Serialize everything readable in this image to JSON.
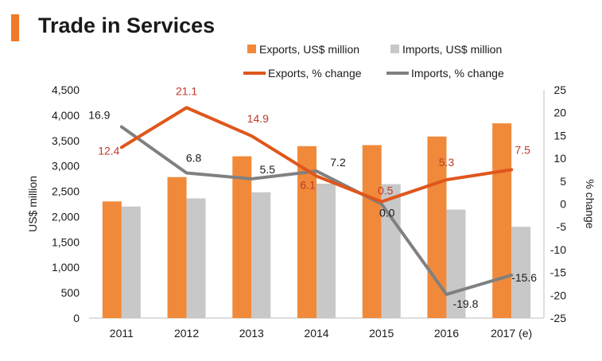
{
  "header": {
    "title": "Trade in Services"
  },
  "colors": {
    "accent": "#EE7A2A",
    "exports_bar": "#F08A3A",
    "imports_bar": "#C8C8C8",
    "exports_line": "#E0561B",
    "imports_line": "#808080",
    "exports_label": "#C0392B",
    "axis_text": "#1a1a1a"
  },
  "chart_data": {
    "type": "bar",
    "title": "Trade in Services",
    "categories": [
      "2011",
      "2012",
      "2013",
      "2014",
      "2015",
      "2016",
      "2017 (e)"
    ],
    "ylabel": "US$ million",
    "y2label": "% change",
    "ylim": [
      0,
      4500
    ],
    "yticks": [
      "0",
      "500",
      "1,000",
      "1,500",
      "2,000",
      "2,500",
      "3,000",
      "3,500",
      "4,000",
      "4,500"
    ],
    "y2lim": [
      -25,
      25
    ],
    "y2ticks": [
      "-25",
      "-20",
      "-15",
      "-10",
      "-5",
      "0",
      "5",
      "10",
      "15",
      "20",
      "25"
    ],
    "series": [
      {
        "name": "Exports, US$ million",
        "kind": "bar",
        "axis": "left",
        "values": [
          2300,
          2780,
          3190,
          3390,
          3410,
          3580,
          3840
        ]
      },
      {
        "name": "Imports, US$ million",
        "kind": "bar",
        "axis": "left",
        "values": [
          2200,
          2360,
          2480,
          2650,
          2640,
          2140,
          1800
        ]
      },
      {
        "name": "Exports, % change",
        "kind": "line",
        "axis": "right",
        "values": [
          12.4,
          21.1,
          14.9,
          6.1,
          0.5,
          5.3,
          7.5
        ],
        "labels": [
          "12.4",
          "21.1",
          "14.9",
          "6.1",
          "0.5",
          "5.3",
          "7.5"
        ]
      },
      {
        "name": "Imports, % change",
        "kind": "line",
        "axis": "right",
        "values": [
          16.9,
          6.8,
          5.5,
          7.2,
          0.0,
          -19.8,
          -15.6
        ],
        "labels": [
          "16.9",
          "6.8",
          "5.5",
          "7.2",
          "0.0",
          "-19.8",
          "-15.6"
        ]
      }
    ],
    "legend": [
      "Exports, US$ million",
      "Imports, US$ million",
      "Exports, % change",
      "Imports, % change"
    ],
    "legend_position": "top-right",
    "grid": false
  }
}
